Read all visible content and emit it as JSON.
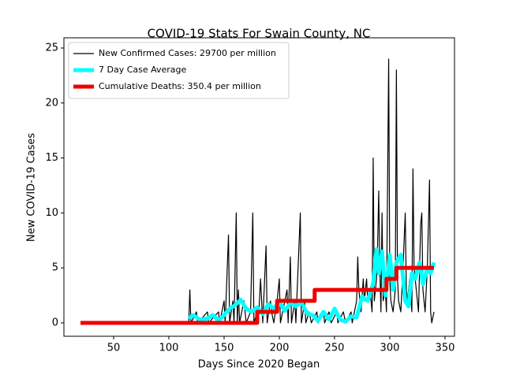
{
  "chart_data": {
    "type": "line",
    "title": "COVID-19 Stats For Swain County, NC",
    "xlabel": "Days Since 2020 Began",
    "ylabel": "New COVID-19 Cases",
    "xlim": [
      5,
      358.6
    ],
    "ylim": [
      -1.22,
      25.93
    ],
    "xticks": [
      50,
      100,
      150,
      200,
      250,
      300,
      350
    ],
    "yticks": [
      0,
      5,
      10,
      15,
      20,
      25
    ],
    "legend": "upper left",
    "series": [
      {
        "name": "New Confirmed Cases: 29700 per million",
        "color": "#000000",
        "width": 1.2,
        "x": [
          20,
          118,
          119,
          120,
          125,
          126,
          135,
          136,
          145,
          146,
          150,
          151,
          154,
          155,
          158,
          159,
          161,
          162,
          163,
          164,
          168,
          169,
          170,
          174,
          176,
          177,
          180,
          181,
          183,
          184,
          185,
          188,
          189,
          192,
          193,
          195,
          198,
          200,
          201,
          205,
          207,
          208,
          210,
          211,
          214,
          215,
          219,
          220,
          223,
          224,
          227,
          229,
          234,
          235,
          240,
          241,
          245,
          247,
          252,
          253,
          258,
          260,
          265,
          266,
          268,
          270,
          271,
          272,
          274,
          276,
          277,
          279,
          280,
          282,
          284,
          285,
          286,
          288,
          289,
          290,
          291,
          292,
          293,
          294,
          296,
          297,
          299,
          300,
          301,
          303,
          305,
          306,
          307,
          308,
          310,
          312,
          314,
          315,
          316,
          318,
          320,
          321,
          322,
          324,
          326,
          328,
          329,
          330,
          332,
          334,
          336,
          337,
          338,
          340
        ],
        "values": [
          0,
          0,
          3,
          0,
          1,
          0,
          1,
          0,
          1,
          0,
          2,
          0,
          8,
          0,
          2,
          0,
          10,
          0,
          3,
          0,
          2,
          1,
          0,
          1,
          10,
          0,
          1,
          0,
          4,
          2,
          0,
          7,
          0,
          2,
          1,
          0,
          2,
          4,
          0,
          2,
          3,
          0,
          6,
          0,
          2,
          0,
          10,
          0,
          2,
          0,
          1,
          0,
          1,
          0,
          1,
          0,
          1,
          0,
          1,
          0,
          1,
          0,
          1,
          0,
          1,
          2,
          6,
          3,
          1,
          4,
          2,
          4,
          2,
          3,
          1,
          15,
          2,
          4,
          7,
          12,
          5,
          1,
          10,
          2,
          3,
          1,
          24,
          4,
          2,
          1,
          3,
          23,
          4,
          2,
          1,
          5,
          10,
          3,
          2,
          4,
          1,
          14,
          5,
          3,
          1,
          9,
          10,
          3,
          1,
          5,
          13,
          1,
          0,
          1
        ]
      },
      {
        "name": "7 Day Case Average",
        "color": "#00ffff",
        "width": 5,
        "x": [
          118,
          122,
          128,
          135,
          140,
          145,
          150,
          155,
          160,
          165,
          170,
          175,
          180,
          185,
          190,
          195,
          200,
          205,
          210,
          215,
          220,
          225,
          230,
          235,
          240,
          245,
          250,
          255,
          260,
          265,
          270,
          275,
          280,
          285,
          288,
          290,
          293,
          296,
          300,
          303,
          306,
          310,
          314,
          317,
          320,
          323,
          327,
          330,
          334,
          337,
          340
        ],
        "values": [
          0.4,
          0.7,
          0.3,
          0.4,
          0.7,
          0.2,
          0.7,
          1.3,
          1.6,
          2.1,
          1.3,
          1.0,
          1.4,
          0.8,
          1.7,
          1.3,
          1.9,
          1.1,
          1.8,
          1.5,
          1.9,
          0.9,
          0.7,
          0.2,
          1.0,
          0.3,
          1.3,
          0.3,
          0.1,
          0.6,
          0.5,
          2.4,
          2.0,
          3.6,
          6.7,
          4.5,
          6.5,
          2.5,
          6.2,
          3.0,
          5.5,
          6.2,
          2.0,
          1.5,
          4.5,
          4.0,
          5.5,
          3.5,
          5.0,
          4.5,
          5.5
        ]
      },
      {
        "name": "Cumulative Deaths: 350.4 per million",
        "color": "#ee0000",
        "width": 5,
        "x": [
          20,
          180,
          180,
          198,
          198,
          232,
          232,
          297,
          297,
          306,
          306,
          340
        ],
        "values": [
          0,
          0,
          1,
          1,
          2,
          2,
          3,
          3,
          4,
          4,
          5,
          5
        ]
      }
    ]
  }
}
